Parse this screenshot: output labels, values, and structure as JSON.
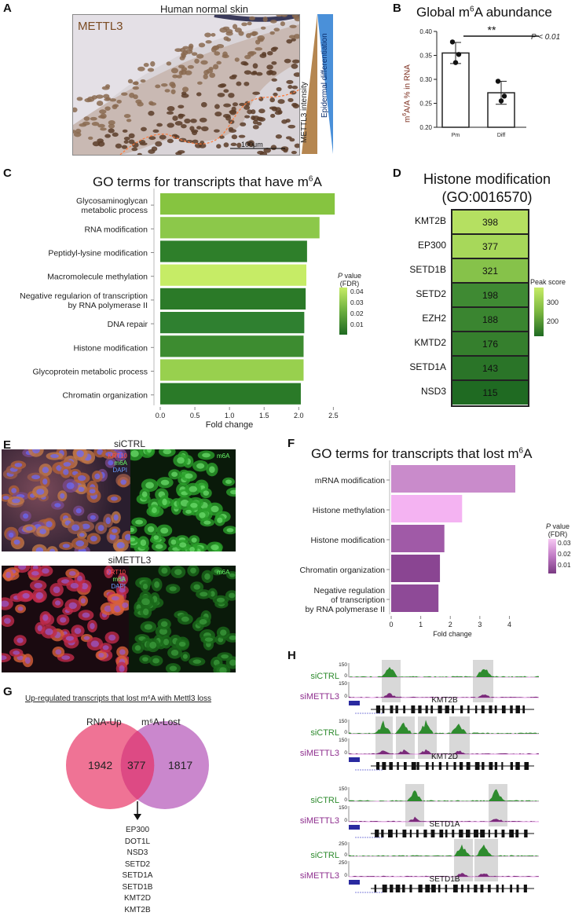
{
  "panels": {
    "A": {
      "label": "A",
      "title": "Human normal skin",
      "stain": "METTL3",
      "scale_bar": "100μm",
      "triangle_left": "METTL3 intensity",
      "triangle_right": "Epidermal differentiation"
    },
    "B": {
      "label": "B",
      "title": "Global m6A abundance",
      "title_pre": "Global m",
      "title_sup": "6",
      "title_post": "A abundance",
      "ylabel": "m6A/A % in RNA",
      "sig": "**",
      "pvalue": "P < 0.01",
      "chart_data": {
        "type": "bar",
        "categories": [
          "Pm",
          "Diff"
        ],
        "values": [
          0.355,
          0.272
        ],
        "points": [
          [
            0.378,
            0.335,
            0.352
          ],
          [
            0.296,
            0.255,
            0.265
          ]
        ],
        "errors": [
          0.022,
          0.024
        ],
        "ylim": [
          0.2,
          0.4
        ],
        "yticks": [
          "0.20",
          "0.25",
          "0.30",
          "0.35",
          "0.40"
        ]
      }
    },
    "C": {
      "label": "C",
      "title_pre": "GO terms for transcripts that have m",
      "title_sup": "6",
      "title_post": "A",
      "xlabel": "Fold change",
      "legend_title": "P value (FDR)",
      "legend_title_p": "P",
      "legend_title_rest": " value",
      "legend_title_2": "(FDR)",
      "legend_ticks": [
        "0.04",
        "0.03",
        "0.02",
        "0.01"
      ],
      "chart_data": {
        "type": "bar",
        "orientation": "horizontal",
        "categories": [
          "Glycosaminoglycan metabolic process",
          "RNA modification",
          "Peptidyl-lysine modification",
          "Macromolecule methylation",
          "Negative regularion of transcription by RNA polymerase II",
          "DNA repair",
          "Histone modification",
          "Glycoprotein metabolic process",
          "Chromatin organization"
        ],
        "labels_line1": [
          "Glycosaminoglycan",
          "RNA modification",
          "Peptidyl-lysine modification",
          "Macromolecule methylation",
          "Negative regularion of transcription",
          "DNA repair",
          "Histone modification",
          "Glycoprotein metabolic process",
          "Chromatin organization"
        ],
        "labels_line2": [
          "metabolic process",
          "",
          "",
          "",
          "by RNA polymerase II",
          "",
          "",
          "",
          ""
        ],
        "values": [
          2.52,
          2.3,
          2.12,
          2.11,
          2.1,
          2.08,
          2.07,
          2.07,
          2.03
        ],
        "colors": [
          "#86c440",
          "#8cc84a",
          "#2e7f2a",
          "#c6ec66",
          "#2b7a28",
          "#2f8030",
          "#3d8c30",
          "#98d04e",
          "#2a7a28"
        ],
        "xlim": [
          0,
          2.6
        ],
        "xticks": [
          "0.0",
          "0.5",
          "1.0",
          "1.5",
          "2.0",
          "2.5"
        ]
      }
    },
    "D": {
      "label": "D",
      "title_1": "Histone modification",
      "title_2": "(GO:0016570)",
      "legend_title": "Peak score",
      "legend_ticks": [
        "300",
        "200"
      ],
      "chart_data": {
        "type": "heatmap",
        "rows": [
          "KMT2B",
          "EP300",
          "SETD1B",
          "SETD2",
          "EZH2",
          "KMTD2",
          "SETD1A",
          "NSD3"
        ],
        "values": [
          398,
          377,
          321,
          198,
          188,
          176,
          143,
          115
        ],
        "colors": [
          "#b5e061",
          "#a7d85a",
          "#86c24a",
          "#3f8a33",
          "#3a8530",
          "#357f2d",
          "#2a7428",
          "#1f6a22"
        ]
      }
    },
    "E": {
      "label": "E",
      "top_label": "siCTRL",
      "bottom_label": "siMETTL3",
      "channels": [
        "KRT10",
        "m6A",
        "DAPI"
      ],
      "green_label": "m6A"
    },
    "F": {
      "label": "F",
      "title_pre": "GO terms for transcripts that lost m",
      "title_sup": "6",
      "title_post": "A",
      "xlabel": "Fold change",
      "legend_title_p": "P",
      "legend_title_rest": " value",
      "legend_title_2": "(FDR)",
      "legend_ticks": [
        "0.03",
        "0.02",
        "0.01"
      ],
      "chart_data": {
        "type": "bar",
        "orientation": "horizontal",
        "categories": [
          "mRNA modification",
          "Histone methylation",
          "Histone modification",
          "Chromatin organization",
          "Negative regulation of transcription by RNA polymerase II"
        ],
        "labels_line1": [
          "mRNA modification",
          "Histone methylation",
          "Histone modification",
          "Chromatin organization",
          "Negative regulation"
        ],
        "labels_line2": [
          "",
          "",
          "",
          "",
          "of transcription"
        ],
        "labels_line3": [
          "",
          "",
          "",
          "",
          "by RNA polymerase II"
        ],
        "values": [
          4.2,
          2.4,
          1.8,
          1.65,
          1.6
        ],
        "colors": [
          "#c98bcb",
          "#f4b3f2",
          "#a05aa7",
          "#8a4592",
          "#8e4a97"
        ],
        "xlim": [
          0,
          4.4
        ],
        "xticks": [
          "0",
          "1",
          "2",
          "3",
          "4"
        ]
      }
    },
    "G": {
      "label": "G",
      "title": "Up-regulated transcripts that lost m⁶A with Mettl3 loss",
      "set_left": "RNA-Up",
      "set_right": "m⁶A-Lost",
      "left_only": "1942",
      "overlap": "377",
      "right_only": "1817",
      "genes": [
        "EP300",
        "DOT1L",
        "NSD3",
        "SETD2",
        "SETD1A",
        "SETD1B",
        "KMT2D",
        "KMT2B"
      ]
    },
    "H": {
      "label": "H",
      "tracks": [
        {
          "gene": "KMT2B",
          "ctrl": "siCTRL",
          "kd": "siMETTL3",
          "ymax_ctrl": "150",
          "ymax_kd": "150",
          "zero": "0"
        },
        {
          "gene": "KMT2D",
          "ctrl": "siCTRL",
          "kd": "siMETTL3",
          "ymax_ctrl": "150",
          "ymax_kd": "150",
          "zero": "0"
        },
        {
          "gene": "SETD1A",
          "ctrl": "siCTRL",
          "kd": "siMETTL3",
          "ymax_ctrl": "150",
          "ymax_kd": "150",
          "zero": "0"
        },
        {
          "gene": "SETD1B",
          "ctrl": "siCTRL",
          "kd": "siMETTL3",
          "ymax_ctrl": "250",
          "ymax_kd": "250",
          "zero": "0"
        }
      ]
    }
  },
  "colors": {
    "green_dark": "#1f6a22",
    "green_light": "#c6ec66",
    "purple": "#8a4592",
    "pink": "#f08cab",
    "venn_left": "#ee6b8f",
    "venn_right": "#c47ac8",
    "ctrl_track": "#2e8b2e",
    "kd_track": "#8e2e8e",
    "magenta_base": "#e040e0",
    "highlight": "#d8d8d8"
  }
}
